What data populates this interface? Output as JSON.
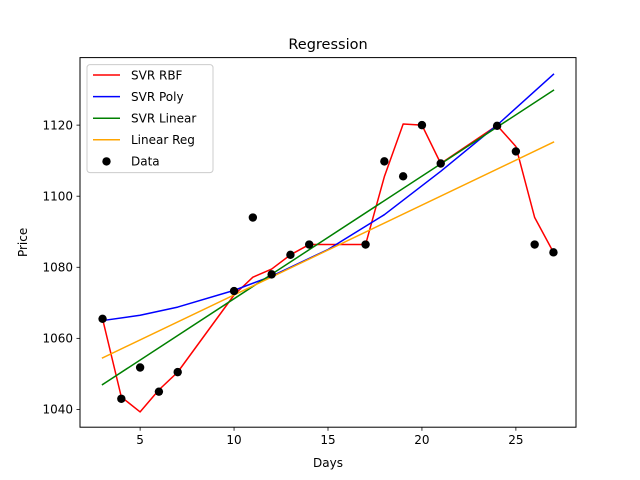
{
  "chart_data": {
    "type": "line",
    "title": "Regression",
    "xlabel": "Days",
    "ylabel": "Price",
    "xlim": [
      1.8,
      28.2
    ],
    "ylim": [
      1035,
      1139
    ],
    "x_ticks": [
      5,
      10,
      15,
      20,
      25
    ],
    "y_ticks": [
      1040,
      1060,
      1080,
      1100,
      1120
    ],
    "grid": false,
    "legend_position": "top-left",
    "series": [
      {
        "name": "SVR RBF",
        "kind": "line",
        "color": "#ff0000",
        "x": [
          3,
          4,
          5,
          6,
          7,
          10,
          11,
          12,
          13,
          14,
          17,
          18,
          19,
          20,
          21,
          24,
          25,
          26,
          27
        ],
        "y": [
          1065.5,
          1043.5,
          1039.3,
          1045.5,
          1050.5,
          1072.2,
          1077.2,
          1079.5,
          1083.5,
          1086.4,
          1086.4,
          1105.5,
          1120.3,
          1120.0,
          1109.2,
          1119.9,
          1114.0,
          1094.0,
          1084.2
        ]
      },
      {
        "name": "SVR Poly",
        "kind": "line",
        "color": "#0000ff",
        "x": [
          3,
          5,
          7,
          10,
          12,
          15,
          18,
          21,
          24,
          27
        ],
        "y": [
          1065.0,
          1066.5,
          1068.8,
          1073.5,
          1077.5,
          1085.0,
          1094.8,
          1107.0,
          1120.0,
          1134.3
        ]
      },
      {
        "name": "SVR Linear",
        "kind": "line",
        "color": "#008000",
        "x": [
          3,
          27
        ],
        "y": [
          1047.0,
          1129.8
        ]
      },
      {
        "name": "Linear Reg",
        "kind": "line",
        "color": "#ffa500",
        "x": [
          3,
          27
        ],
        "y": [
          1054.5,
          1115.2
        ]
      },
      {
        "name": "Data",
        "kind": "scatter",
        "color": "#000000",
        "x": [
          3,
          4,
          5,
          6,
          7,
          10,
          11,
          12,
          13,
          14,
          17,
          18,
          19,
          20,
          21,
          24,
          25,
          26,
          27
        ],
        "y": [
          1065.5,
          1043.0,
          1051.8,
          1045.0,
          1050.5,
          1073.3,
          1094.0,
          1078.0,
          1083.5,
          1086.4,
          1086.4,
          1109.8,
          1105.6,
          1120.0,
          1109.2,
          1119.8,
          1112.6,
          1086.4,
          1084.2
        ]
      }
    ]
  }
}
